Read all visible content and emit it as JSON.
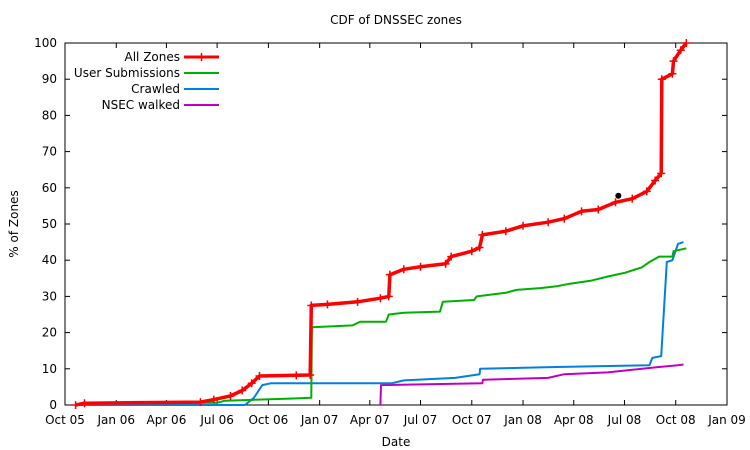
{
  "chart_data": {
    "type": "line",
    "title": "CDF of DNSSEC zones",
    "xlabel": "Date",
    "ylabel": "% of Zones",
    "x_ticks": [
      "Oct 05",
      "Jan 06",
      "Apr 06",
      "Jul 06",
      "Oct 06",
      "Jan 07",
      "Apr 07",
      "Jul 07",
      "Oct 07",
      "Jan 08",
      "Apr 08",
      "Jul 08",
      "Oct 08",
      "Jan 09"
    ],
    "xlim": [
      "2005-10-01",
      "2009-01-01"
    ],
    "ylim": [
      0,
      100
    ],
    "y_ticks": [
      0,
      10,
      20,
      30,
      40,
      50,
      60,
      70,
      80,
      90,
      100
    ],
    "legend_position": "top-left",
    "grid": false,
    "series": [
      {
        "name": "All Zones",
        "color": "#ff0000",
        "marker": "plus",
        "points": [
          [
            "2005-10-20",
            0
          ],
          [
            "2005-11-05",
            0.5
          ],
          [
            "2006-06-01",
            0.8
          ],
          [
            "2006-06-25",
            1.5
          ],
          [
            "2006-07-25",
            2.5
          ],
          [
            "2006-08-15",
            4
          ],
          [
            "2006-09-01",
            6
          ],
          [
            "2006-09-15",
            8
          ],
          [
            "2006-11-20",
            8.2
          ],
          [
            "2006-12-15",
            8.3
          ],
          [
            "2006-12-17",
            27.5
          ],
          [
            "2007-01-15",
            27.8
          ],
          [
            "2007-03-10",
            28.5
          ],
          [
            "2007-04-20",
            29.5
          ],
          [
            "2007-05-05",
            30
          ],
          [
            "2007-05-07",
            36
          ],
          [
            "2007-06-01",
            37.5
          ],
          [
            "2007-07-01",
            38.2
          ],
          [
            "2007-08-15",
            39
          ],
          [
            "2007-08-25",
            41
          ],
          [
            "2007-10-01",
            42.5
          ],
          [
            "2007-10-15",
            43.5
          ],
          [
            "2007-10-20",
            47
          ],
          [
            "2007-12-01",
            48
          ],
          [
            "2008-01-01",
            49.5
          ],
          [
            "2008-02-15",
            50.5
          ],
          [
            "2008-03-15",
            51.5
          ],
          [
            "2008-04-15",
            53.5
          ],
          [
            "2008-05-15",
            54
          ],
          [
            "2008-06-15",
            56
          ],
          [
            "2008-07-15",
            57
          ],
          [
            "2008-08-10",
            59
          ],
          [
            "2008-08-25",
            62
          ],
          [
            "2008-09-05",
            64
          ],
          [
            "2008-09-06",
            90
          ],
          [
            "2008-09-25",
            91.5
          ],
          [
            "2008-09-27",
            95
          ],
          [
            "2008-10-10",
            98
          ],
          [
            "2008-10-20",
            100
          ]
        ]
      },
      {
        "name": "User Submissions",
        "color": "#00b000",
        "marker": "none",
        "points": [
          [
            "2005-10-20",
            0
          ],
          [
            "2005-11-05",
            0.5
          ],
          [
            "2006-07-01",
            0.6
          ],
          [
            "2006-07-15",
            1.2
          ],
          [
            "2006-11-15",
            1.8
          ],
          [
            "2006-12-17",
            2
          ],
          [
            "2006-12-18",
            21.5
          ],
          [
            "2007-03-01",
            22
          ],
          [
            "2007-03-15",
            23
          ],
          [
            "2007-04-30",
            23
          ],
          [
            "2007-05-05",
            25
          ],
          [
            "2007-06-01",
            25.5
          ],
          [
            "2007-08-05",
            25.8
          ],
          [
            "2007-08-10",
            28.5
          ],
          [
            "2007-10-05",
            29
          ],
          [
            "2007-10-10",
            30
          ],
          [
            "2007-12-01",
            31
          ],
          [
            "2007-12-20",
            31.8
          ],
          [
            "2008-02-01",
            32.3
          ],
          [
            "2008-03-01",
            32.8
          ],
          [
            "2008-03-25",
            33.5
          ],
          [
            "2008-05-01",
            34.3
          ],
          [
            "2008-06-01",
            35.5
          ],
          [
            "2008-07-01",
            36.5
          ],
          [
            "2008-08-01",
            38
          ],
          [
            "2008-08-15",
            39.5
          ],
          [
            "2008-09-01",
            41
          ],
          [
            "2008-09-25",
            41
          ],
          [
            "2008-09-27",
            42.5
          ],
          [
            "2008-10-20",
            43.3
          ]
        ]
      },
      {
        "name": "Crawled",
        "color": "#0080e0",
        "marker": "none",
        "points": [
          [
            "2005-10-20",
            0
          ],
          [
            "2006-08-20",
            0
          ],
          [
            "2006-09-05",
            2
          ],
          [
            "2006-09-20",
            5.5
          ],
          [
            "2006-10-05",
            6
          ],
          [
            "2007-05-10",
            6
          ],
          [
            "2007-06-01",
            6.8
          ],
          [
            "2007-09-01",
            7.5
          ],
          [
            "2007-10-15",
            8.5
          ],
          [
            "2007-10-16",
            10
          ],
          [
            "2008-03-01",
            10.5
          ],
          [
            "2008-08-15",
            11
          ],
          [
            "2008-08-20",
            13
          ],
          [
            "2008-09-05",
            13.5
          ],
          [
            "2008-09-15",
            39.5
          ],
          [
            "2008-09-25",
            40
          ],
          [
            "2008-10-05",
            44.5
          ],
          [
            "2008-10-15",
            45
          ]
        ]
      },
      {
        "name": "NSEC walked",
        "color": "#c000c0",
        "marker": "none",
        "points": [
          [
            "2007-04-20",
            0
          ],
          [
            "2007-04-21",
            5.5
          ],
          [
            "2007-10-20",
            6
          ],
          [
            "2007-10-21",
            7
          ],
          [
            "2008-02-15",
            7.5
          ],
          [
            "2008-03-15",
            8.5
          ],
          [
            "2008-06-01",
            9
          ],
          [
            "2008-09-01",
            10.5
          ],
          [
            "2008-10-05",
            11
          ],
          [
            "2008-10-15",
            11.2
          ]
        ]
      }
    ],
    "annotation_points": [
      {
        "x": "2008-06-20",
        "y": 57.8,
        "color": "#000000"
      }
    ]
  }
}
